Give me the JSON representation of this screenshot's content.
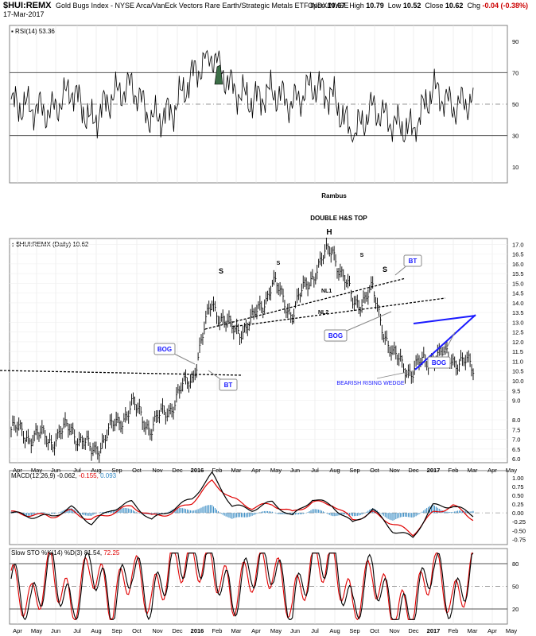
{
  "header": {
    "symbol": "$HUI:REMX",
    "description": "Gold Bugs Index - NYSE Arca/VanEck Vectors Rare Earth/Strategic Metals ETF  INDX/NYSE",
    "date": "17-Mar-2017",
    "open_label": "Open",
    "open": "10.67",
    "high_label": "High",
    "high": "10.79",
    "low_label": "Low",
    "low": "10.52",
    "close_label": "Close",
    "close": "10.62",
    "chg_label": "Chg",
    "chg": "-0.04 (-0.38%)"
  },
  "colors": {
    "price": "#000000",
    "annotation_blue": "#1a1aff",
    "rsi_fill": "#3c6e47",
    "macd_signal": "#e00000",
    "histogram": "#2e86c1",
    "grid": "#b0b0b0"
  },
  "annotations": {
    "author": "Rambus",
    "pattern": "DOUBLE H&S TOP",
    "head": "H",
    "shoulders": [
      "S",
      "S",
      "S",
      "S"
    ],
    "bog_1": "BOG",
    "bt_1": "BT",
    "bog_2": "BOG",
    "bt_2": "BT",
    "bog_3": "BOG",
    "nl1": "NL1",
    "nl2": "NL2",
    "wedge": "BEARISH RISING WEDGE"
  },
  "x_axis_months": [
    "Apr",
    "May",
    "Jun",
    "Jul",
    "Aug",
    "Sep",
    "Oct",
    "Nov",
    "Dec",
    "2016",
    "Feb",
    "Mar",
    "Apr",
    "May",
    "Jun",
    "Jul",
    "Aug",
    "Sep",
    "Oct",
    "Nov",
    "Dec",
    "2017",
    "Feb",
    "Mar",
    "Apr",
    "May"
  ],
  "chart_data": [
    {
      "type": "line",
      "title": "RSI(14) 53.36",
      "series": [
        {
          "name": "RSI(14)",
          "x": [
            "2015-04",
            "2015-05",
            "2015-06",
            "2015-07",
            "2015-08",
            "2015-09",
            "2015-10",
            "2015-11",
            "2015-12",
            "2016-01",
            "2016-02",
            "2016-03",
            "2016-04",
            "2016-05",
            "2016-06",
            "2016-07",
            "2016-08",
            "2016-09",
            "2016-10",
            "2016-11",
            "2016-12",
            "2017-01",
            "2017-02",
            "2017-03"
          ],
          "values": [
            50,
            48,
            45,
            60,
            38,
            55,
            62,
            40,
            45,
            68,
            82,
            60,
            52,
            58,
            50,
            62,
            55,
            30,
            48,
            38,
            33,
            60,
            48,
            53
          ]
        }
      ],
      "ylim": [
        0,
        100
      ],
      "yticks": [
        "90",
        "70",
        "50",
        "30",
        "10"
      ],
      "reference_lines": [
        30,
        50,
        70
      ]
    },
    {
      "type": "line",
      "title": "$HUI:REMX (Daily) 10.62",
      "series": [
        {
          "name": "$HUI:REMX",
          "x": [
            "2015-04",
            "2015-05",
            "2015-06",
            "2015-07",
            "2015-08",
            "2015-09",
            "2015-10",
            "2015-11",
            "2015-12",
            "2016-01",
            "2016-02",
            "2016-03",
            "2016-04",
            "2016-05",
            "2016-06",
            "2016-07",
            "2016-08",
            "2016-09",
            "2016-10",
            "2016-11",
            "2016-12",
            "2017-01",
            "2017-02",
            "2017-03"
          ],
          "values": [
            7.5,
            7.2,
            7.0,
            7.6,
            6.3,
            7.5,
            8.7,
            7.6,
            8.8,
            10.2,
            14.0,
            12.5,
            13.0,
            15.0,
            13.5,
            15.5,
            16.8,
            14.0,
            14.5,
            11.2,
            10.5,
            11.3,
            11.2,
            10.6
          ]
        }
      ],
      "ylim": [
        5.8,
        17.3
      ],
      "yticks": [
        "17.0",
        "16.5",
        "16.0",
        "15.5",
        "15.0",
        "14.5",
        "14.0",
        "13.5",
        "13.0",
        "12.5",
        "12.0",
        "11.5",
        "11.0",
        "10.5",
        "10.0",
        "9.5",
        "9.0",
        "8.0",
        "7.5",
        "7.0",
        "6.5",
        "6.0"
      ]
    },
    {
      "type": "line",
      "title": "MACD(12,26,9) -0.062, -0.155, 0.093",
      "title_parts": [
        "MACD(12,26,9)",
        "-0.062,",
        "-0.155,",
        "0.093"
      ],
      "series": [
        {
          "name": "MACD",
          "values": [
            0.0,
            -0.1,
            -0.1,
            0.15,
            -0.3,
            0.1,
            0.3,
            -0.2,
            0.1,
            0.4,
            1.1,
            0.2,
            0.1,
            0.3,
            -0.1,
            0.4,
            0.2,
            -0.3,
            0.1,
            -0.5,
            -0.7,
            0.2,
            0.2,
            -0.06
          ]
        },
        {
          "name": "Signal",
          "values": [
            0.0,
            -0.05,
            -0.1,
            0.05,
            -0.2,
            0.0,
            0.2,
            -0.1,
            0.0,
            0.3,
            0.9,
            0.4,
            0.15,
            0.25,
            0.0,
            0.3,
            0.25,
            -0.2,
            0.0,
            -0.3,
            -0.6,
            0.0,
            0.2,
            -0.16
          ]
        },
        {
          "name": "Histogram",
          "values": [
            0.0,
            -0.05,
            0.0,
            0.1,
            -0.1,
            0.1,
            0.1,
            -0.1,
            0.1,
            0.1,
            0.2,
            -0.2,
            -0.05,
            0.05,
            -0.1,
            0.1,
            -0.05,
            -0.1,
            0.1,
            -0.2,
            -0.1,
            0.2,
            0.0,
            0.09
          ]
        }
      ],
      "ylim": [
        -0.9,
        1.2
      ],
      "yticks": [
        "1.00",
        "0.75",
        "0.50",
        "0.25",
        "0.00",
        "-0.25",
        "-0.50",
        "-0.75"
      ]
    },
    {
      "type": "line",
      "title": "Slow STO %K(14) %D(3) 81.54, 72.25",
      "title_parts": [
        "Slow STO %K(14) %D(3)",
        "81.54,",
        "72.25"
      ],
      "series": [
        {
          "name": "%K",
          "values": [
            60,
            20,
            80,
            15,
            85,
            20,
            80,
            25,
            85,
            90,
            85,
            30,
            75,
            80,
            20,
            85,
            90,
            15,
            75,
            10,
            15,
            85,
            20,
            82
          ]
        },
        {
          "name": "%D",
          "values": [
            55,
            25,
            75,
            20,
            80,
            25,
            75,
            30,
            80,
            85,
            80,
            35,
            70,
            75,
            25,
            80,
            85,
            20,
            70,
            15,
            20,
            80,
            25,
            72
          ]
        }
      ],
      "ylim": [
        0,
        100
      ],
      "yticks": [
        "80",
        "50",
        "20"
      ],
      "reference_lines": [
        20,
        50,
        80
      ]
    }
  ]
}
